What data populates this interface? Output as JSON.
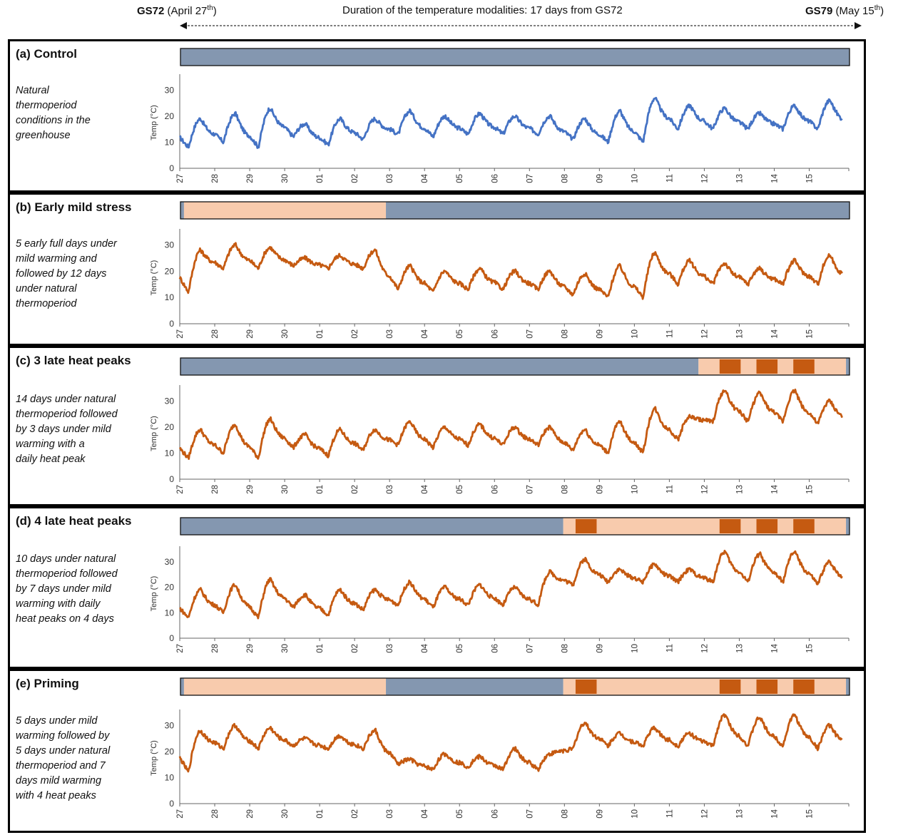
{
  "header": {
    "left_bold": "GS72",
    "left_text": " (April 27",
    "left_sup": "th",
    "left_close": ")",
    "middle": "Duration of the temperature modalities:  17 days from GS72",
    "right_bold": "GS79",
    "right_text": " (May 15",
    "right_sup": "th",
    "right_close": ")"
  },
  "colors": {
    "natural": "#8497B0",
    "mild_warming": "#F8CBAD",
    "heat_peak": "#C55A11",
    "control_line": "#4472C4",
    "treatment_line": "#C55A11"
  },
  "axis": {
    "ylabel": "Temp (°C)",
    "yticks": [
      0,
      10,
      20,
      30
    ],
    "xticks": [
      "27",
      "28",
      "29",
      "30",
      "01",
      "02",
      "03",
      "04",
      "05",
      "06",
      "07",
      "08",
      "09",
      "10",
      "11",
      "12",
      "13",
      "14",
      "15"
    ]
  },
  "panels": [
    {
      "title": "(a)  Control",
      "description": [
        "Natural",
        "thermoperiod",
        "conditions in the",
        "greenhouse"
      ],
      "line_color": "control_line",
      "schedule": [
        {
          "start": 0,
          "end": 19.05,
          "type": "natural"
        }
      ]
    },
    {
      "title": "(b) Early mild stress",
      "description": [
        "5 early full days under",
        "mild warming and",
        "followed by 12 days",
        "under natural",
        "thermoperiod"
      ],
      "line_color": "treatment_line",
      "schedule": [
        {
          "start": 0,
          "end": 0.1,
          "type": "natural"
        },
        {
          "start": 0.1,
          "end": 5.85,
          "type": "mild_warming"
        },
        {
          "start": 5.85,
          "end": 19.05,
          "type": "natural"
        }
      ]
    },
    {
      "title": "(c) 3 late heat peaks",
      "description": [
        "14 days under natural",
        "thermoperiod followed",
        "by 3 days under mild",
        "warming with a",
        "daily heat peak"
      ],
      "line_color": "treatment_line",
      "schedule": [
        {
          "start": 0,
          "end": 14.75,
          "type": "natural"
        },
        {
          "start": 14.75,
          "end": 18.95,
          "type": "mild_warming"
        },
        {
          "start": 15.35,
          "end": 15.95,
          "type": "heat_peak"
        },
        {
          "start": 16.4,
          "end": 17.0,
          "type": "heat_peak"
        },
        {
          "start": 17.45,
          "end": 18.05,
          "type": "heat_peak"
        },
        {
          "start": 18.95,
          "end": 19.05,
          "type": "natural"
        }
      ]
    },
    {
      "title": "(d) 4 late heat peaks",
      "description": [
        "10 days under natural",
        "thermoperiod followed",
        "by 7 days under mild",
        "warming with daily",
        "heat peaks on 4 days"
      ],
      "line_color": "treatment_line",
      "schedule": [
        {
          "start": 0,
          "end": 10.9,
          "type": "natural"
        },
        {
          "start": 10.9,
          "end": 18.95,
          "type": "mild_warming"
        },
        {
          "start": 11.25,
          "end": 11.85,
          "type": "heat_peak"
        },
        {
          "start": 15.35,
          "end": 15.95,
          "type": "heat_peak"
        },
        {
          "start": 16.4,
          "end": 17.0,
          "type": "heat_peak"
        },
        {
          "start": 17.45,
          "end": 18.05,
          "type": "heat_peak"
        },
        {
          "start": 18.95,
          "end": 19.05,
          "type": "natural"
        }
      ]
    },
    {
      "title": "(e) Priming",
      "description": [
        "5 days under mild",
        "warming followed by",
        "5 days under natural",
        "thermoperiod and 7",
        "days mild warming",
        "with 4 heat peaks"
      ],
      "line_color": "treatment_line",
      "schedule": [
        {
          "start": 0,
          "end": 0.1,
          "type": "natural"
        },
        {
          "start": 0.1,
          "end": 5.85,
          "type": "mild_warming"
        },
        {
          "start": 5.85,
          "end": 10.9,
          "type": "natural"
        },
        {
          "start": 10.9,
          "end": 18.95,
          "type": "mild_warming"
        },
        {
          "start": 11.25,
          "end": 11.85,
          "type": "heat_peak"
        },
        {
          "start": 15.35,
          "end": 15.95,
          "type": "heat_peak"
        },
        {
          "start": 16.4,
          "end": 17.0,
          "type": "heat_peak"
        },
        {
          "start": 17.45,
          "end": 18.05,
          "type": "heat_peak"
        },
        {
          "start": 18.95,
          "end": 19.05,
          "type": "natural"
        }
      ]
    }
  ],
  "chart_data": [
    {
      "type": "line",
      "title": "(a)  Control",
      "ylabel": "Temp (°C)",
      "ylim": [
        0,
        35
      ],
      "x": [
        "27",
        "28",
        "29",
        "30",
        "01",
        "02",
        "03",
        "04",
        "05",
        "06",
        "07",
        "08",
        "09",
        "10",
        "11",
        "12",
        "13",
        "14",
        "15"
      ],
      "series": [
        {
          "profile": "natural",
          "daily_min": [
            8,
            10,
            8,
            12,
            9,
            11,
            13,
            12,
            13,
            13,
            13,
            11,
            10,
            10,
            15,
            15,
            15,
            15,
            15
          ],
          "daily_max": [
            19,
            21,
            23,
            17,
            19,
            19,
            22,
            20,
            21,
            20,
            20,
            19,
            22,
            27,
            24,
            23,
            21,
            24,
            26
          ]
        }
      ]
    },
    {
      "type": "line",
      "title": "(b) Early mild stress",
      "ylabel": "Temp (°C)",
      "ylim": [
        0,
        35
      ],
      "x": [
        "27",
        "28",
        "29",
        "30",
        "01",
        "02",
        "03",
        "04",
        "05",
        "06",
        "07",
        "08",
        "09",
        "10",
        "11",
        "12",
        "13",
        "14",
        "15"
      ],
      "series": [
        {
          "profile": "mild warming days 27-02, then natural",
          "daily_min": [
            12,
            21,
            21,
            22,
            21,
            21,
            13,
            12,
            13,
            13,
            13,
            11,
            10,
            10,
            15,
            15,
            15,
            15,
            15
          ],
          "daily_max": [
            28,
            30,
            29,
            25,
            26,
            28,
            22,
            20,
            21,
            20,
            20,
            19,
            22,
            27,
            24,
            23,
            21,
            24,
            26
          ]
        }
      ]
    },
    {
      "type": "line",
      "title": "(c) 3 late heat peaks",
      "ylabel": "Temp (°C)",
      "ylim": [
        0,
        35
      ],
      "x": [
        "27",
        "28",
        "29",
        "30",
        "01",
        "02",
        "03",
        "04",
        "05",
        "06",
        "07",
        "08",
        "09",
        "10",
        "11",
        "12",
        "13",
        "14",
        "15"
      ],
      "series": [
        {
          "profile": "natural, then mild warming with heat peaks on 12, 13, 14",
          "daily_min": [
            8,
            10,
            8,
            12,
            9,
            11,
            13,
            12,
            13,
            13,
            13,
            11,
            10,
            10,
            15,
            22,
            22,
            22,
            21
          ],
          "daily_max": [
            19,
            21,
            23,
            17,
            19,
            19,
            22,
            20,
            21,
            20,
            20,
            19,
            22,
            27,
            24,
            34,
            33,
            34,
            30
          ]
        }
      ]
    },
    {
      "type": "line",
      "title": "(d) 4 late heat peaks",
      "ylabel": "Temp (°C)",
      "ylim": [
        0,
        35
      ],
      "x": [
        "27",
        "28",
        "29",
        "30",
        "01",
        "02",
        "03",
        "04",
        "05",
        "06",
        "07",
        "08",
        "09",
        "10",
        "11",
        "12",
        "13",
        "14",
        "15"
      ],
      "series": [
        {
          "profile": "natural, then mild warming from 08 with heat peaks on 08, 12, 13, 14",
          "daily_min": [
            8,
            10,
            8,
            12,
            9,
            11,
            13,
            12,
            13,
            13,
            13,
            21,
            22,
            22,
            22,
            22,
            22,
            22,
            21
          ],
          "daily_max": [
            19,
            21,
            23,
            17,
            19,
            19,
            22,
            20,
            21,
            20,
            26,
            31,
            27,
            29,
            27,
            34,
            33,
            34,
            30
          ]
        }
      ]
    },
    {
      "type": "line",
      "title": "(e) Priming",
      "ylabel": "Temp (°C)",
      "ylim": [
        0,
        35
      ],
      "x": [
        "27",
        "28",
        "29",
        "30",
        "01",
        "02",
        "03",
        "04",
        "05",
        "06",
        "07",
        "08",
        "09",
        "10",
        "11",
        "12",
        "13",
        "14",
        "15"
      ],
      "series": [
        {
          "profile": "mild warming 27-02, natural 03-07, mild warming from 08 with heat peaks on 08, 12, 13, 14",
          "daily_min": [
            12,
            21,
            21,
            22,
            21,
            21,
            15,
            13,
            14,
            13,
            13,
            21,
            22,
            22,
            22,
            22,
            22,
            22,
            21
          ],
          "daily_max": [
            28,
            30,
            29,
            25,
            26,
            28,
            17,
            19,
            18,
            21,
            19,
            31,
            27,
            29,
            27,
            34,
            33,
            34,
            30
          ]
        }
      ]
    }
  ]
}
